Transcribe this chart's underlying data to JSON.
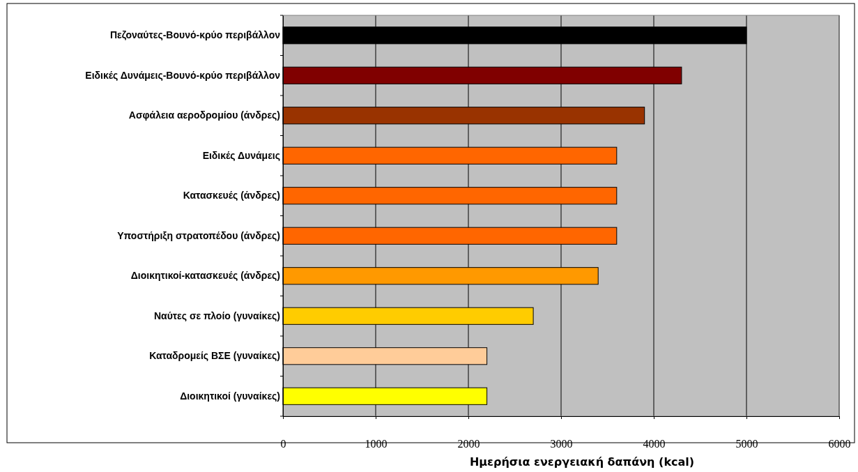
{
  "chart_data": {
    "type": "bar",
    "orientation": "horizontal",
    "xlabel": "Ημερήσια ενεργειακή δαπάνη (kcal)",
    "categories": [
      "Πεζοναύτες-Βουνό-κρύο περιβάλλον",
      "Ειδικές Δυνάμεις-Βουνό-κρύο περιβάλλον",
      "Ασφάλεια αεροδρομίου (άνδρες)",
      "Ειδικές Δυνάμεις",
      "Κατασκευές (άνδρες)",
      "Υποστήριξη στρατοπέδου (άνδρες)",
      "Διοικητικοί-κατασκευές (άνδρες)",
      "Ναύτες σε πλοίο (γυναίκες)",
      "Καταδρομείς ΒΣΕ (γυναίκες)",
      "Διοικητικοί (γυναίκες)"
    ],
    "values": [
      5000,
      4300,
      3900,
      3600,
      3600,
      3600,
      3400,
      2700,
      2200,
      2200
    ],
    "colors": [
      "#000000",
      "#800000",
      "#993300",
      "#ff6600",
      "#ff6600",
      "#ff6600",
      "#ff9900",
      "#ffcc00",
      "#ffcc99",
      "#ffff00"
    ],
    "xlim": [
      0,
      6000
    ],
    "xticks": [
      0,
      1000,
      2000,
      3000,
      4000,
      5000,
      6000
    ],
    "grid": "x"
  }
}
